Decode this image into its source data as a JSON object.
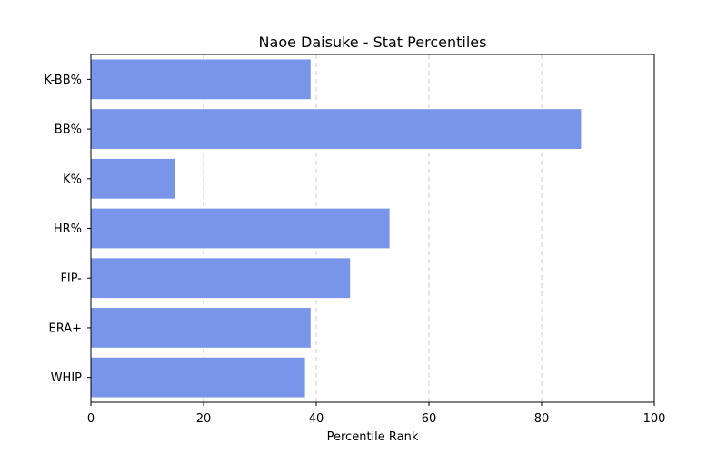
{
  "chart_data": {
    "type": "bar",
    "orientation": "horizontal",
    "title": "Naoe Daisuke - Stat Percentiles",
    "xlabel": "Percentile Rank",
    "ylabel": "",
    "xlim": [
      0,
      100
    ],
    "xticks": [
      0,
      20,
      40,
      60,
      80,
      100
    ],
    "grid": "x-dashed",
    "bar_color": "#7895ea",
    "categories": [
      "K-BB%",
      "BB%",
      "K%",
      "HR%",
      "FIP-",
      "ERA+",
      "WHIP"
    ],
    "values": [
      39,
      87,
      15,
      53,
      46,
      39,
      38
    ]
  }
}
